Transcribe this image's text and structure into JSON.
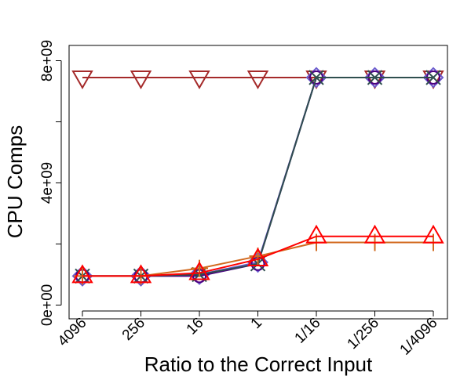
{
  "chart_data": {
    "type": "line",
    "title": "",
    "xlabel": "Ratio to the Correct Input",
    "ylabel": "CPU Comps",
    "categories": [
      "4096",
      "256",
      "16",
      "1",
      "1/16",
      "1/256",
      "1/4096"
    ],
    "yticks": [
      0,
      4000000000,
      8000000000
    ],
    "ytick_labels": [
      "0e+00",
      "4e+09",
      "8e+09"
    ],
    "minor_yticks": [
      2000000000,
      6000000000
    ],
    "ylim": [
      -450000000,
      8500000000
    ],
    "grid": false,
    "legend": "none",
    "series": [
      {
        "color": "#a52a2a",
        "marker": "triangle-down",
        "values": [
          7450000000,
          7450000000,
          7450000000,
          7450000000,
          7450000000,
          7450000000,
          7450000000
        ]
      },
      {
        "color": "#6a5acd",
        "marker": "diamond",
        "values": [
          950000000,
          950000000,
          1000000000,
          1400000000,
          7450000000,
          7450000000,
          7450000000
        ]
      },
      {
        "color": "#4b0082",
        "marker": "circle",
        "values": [
          950000000,
          950000000,
          950000000,
          1350000000,
          7450000000,
          7450000000,
          7450000000
        ]
      },
      {
        "color": "#2f4f4f",
        "marker": "x",
        "values": [
          950000000,
          950000000,
          1000000000,
          1350000000,
          7450000000,
          7450000000,
          7450000000
        ]
      },
      {
        "color": "#d2691e",
        "marker": "plus",
        "values": [
          950000000,
          950000000,
          1200000000,
          1600000000,
          2050000000,
          2050000000,
          2050000000
        ]
      },
      {
        "color": "#ff0000",
        "marker": "triangle-up",
        "values": [
          950000000,
          950000000,
          1050000000,
          1500000000,
          2250000000,
          2250000000,
          2250000000
        ]
      }
    ]
  }
}
